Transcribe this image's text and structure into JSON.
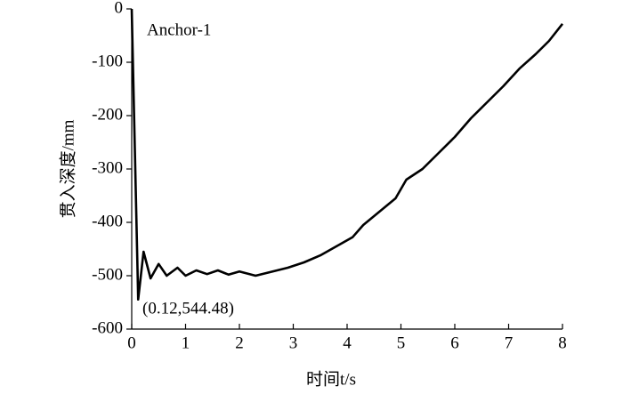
{
  "chart_data": {
    "type": "line",
    "x_label": "时间t/s",
    "y_label": "贯入深度/mm",
    "annotations": [
      "Anchor-1",
      "(0.12,544.48)"
    ],
    "xlim": [
      0,
      8
    ],
    "xticks": [
      0,
      1,
      2,
      3,
      4,
      5,
      6,
      7,
      8
    ],
    "ylim": [
      -600,
      0
    ],
    "yticks": [
      -600,
      -500,
      -400,
      -300,
      -200,
      -100,
      0
    ],
    "grid": false,
    "series": [
      {
        "name": "Anchor-1",
        "color": "#000000",
        "x": [
          0,
          0.12,
          0.22,
          0.35,
          0.5,
          0.65,
          0.85,
          1.0,
          1.2,
          1.4,
          1.6,
          1.8,
          2.0,
          2.3,
          2.5,
          2.7,
          2.9,
          3.2,
          3.5,
          3.8,
          4.1,
          4.3,
          4.6,
          4.9,
          5.1,
          5.4,
          5.7,
          6.0,
          6.3,
          6.6,
          6.9,
          7.2,
          7.5,
          7.75,
          8.0
        ],
        "values": [
          0,
          -544.48,
          -455,
          -505,
          -478,
          -500,
          -485,
          -500,
          -490,
          -497,
          -490,
          -498,
          -492,
          -500,
          -495,
          -490,
          -485,
          -475,
          -462,
          -445,
          -428,
          -405,
          -380,
          -355,
          -320,
          -300,
          -270,
          -240,
          -205,
          -175,
          -145,
          -112,
          -85,
          -60,
          -28
        ]
      }
    ]
  }
}
